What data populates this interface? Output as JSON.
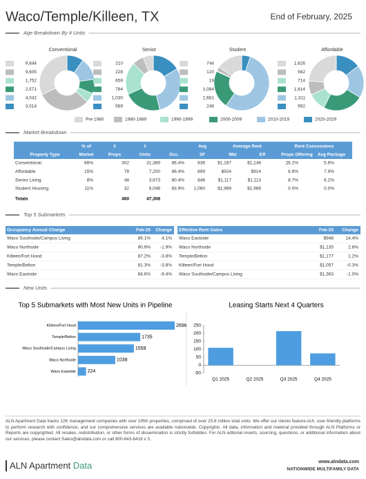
{
  "header": {
    "title": "Waco/Temple/Killeen, TX",
    "date": "End of February, 2025"
  },
  "sections": [
    "Age Breakdown By # Units",
    "Market Breakdown",
    "Top 5 Submarkets",
    "New Units"
  ],
  "age_legend": {
    "categories": [
      "Pre 1980",
      "1980-1989",
      "1990-1999",
      "2000-2009",
      "2010-2019",
      "2020-2029"
    ],
    "colors": [
      "#d9d9d9",
      "#bdbdbd",
      "#a9e3cf",
      "#3a9a78",
      "#9ec6e3",
      "#3a8fc1"
    ]
  },
  "chart_data": [
    {
      "type": "donut",
      "title": "Conventional",
      "values": [
        9844,
        9605,
        1752,
        2571,
        4042,
        3014
      ],
      "value_labels": [
        "9,844",
        "9,605",
        "1,752",
        "2,571",
        "4,042",
        "3,014"
      ]
    },
    {
      "type": "donut",
      "title": "Senior",
      "values": [
        210,
        228,
        659,
        764,
        1030,
        569
      ],
      "value_labels": [
        "210",
        "228",
        "659",
        "764",
        "1,030",
        "569"
      ]
    },
    {
      "type": "donut",
      "title": "Student",
      "values": [
        744,
        120,
        19,
        1084,
        2661,
        246
      ],
      "value_labels": [
        "744",
        "120",
        "19",
        "1,084",
        "2,661",
        "246"
      ]
    },
    {
      "type": "donut",
      "title": "Affordable",
      "values": [
        1626,
        562,
        714,
        1614,
        1311,
        992
      ],
      "value_labels": [
        "1,626",
        "562",
        "714",
        "1,614",
        "1,311",
        "992"
      ]
    },
    {
      "type": "hbar",
      "title": "Top 5 Submarkets with Most New Units in Pipeline",
      "categories": [
        "Killeen/Fort Hood",
        "Temple/Belton",
        "Waco Southside/Campus Living",
        "Waco Northside",
        "Waco Eastside"
      ],
      "values": [
        2696,
        1735,
        1558,
        1038,
        224
      ],
      "color": "#4e9de0"
    },
    {
      "type": "bar",
      "title": "Leasing Starts Next 4 Quarters",
      "categories": [
        "Q1 2025",
        "Q2 2025",
        "Q3 2025",
        "Q4 2025"
      ],
      "values": [
        110,
        0,
        215,
        75
      ],
      "color": "#4e9de0",
      "ylim": [
        -50,
        250
      ],
      "yticks": [
        -50,
        0,
        50,
        100,
        150,
        200,
        250
      ]
    }
  ],
  "market_table": {
    "header_top": [
      null,
      "% of",
      "#",
      "#",
      null,
      "Avg",
      "Average Rent",
      null,
      "Rent Concessions",
      null
    ],
    "header": [
      "Property Type",
      "Market",
      "Props",
      "Units",
      "Occ.",
      "SF",
      "Mkt",
      "Eff",
      "Props Offering",
      "Avg Package"
    ],
    "rows": [
      [
        "Conventional",
        "66%",
        "302",
        "31,389",
        "86.4%",
        "836",
        "$1,167",
        "$1,146",
        "26.2%",
        "5.6%"
      ],
      [
        "Affordable",
        "15%",
        "78",
        "7,200",
        "86.4%",
        "899",
        "$924",
        "$914",
        "6.8%",
        "7.9%"
      ],
      [
        "Senior Living",
        "8%",
        "48",
        "3,673",
        "80.4%",
        "846",
        "$1,117",
        "$1,113",
        "8.7%",
        "6.2%"
      ],
      [
        "Student Housing",
        "11%",
        "32",
        "5,046",
        "83.9%",
        "1,060",
        "$1,989",
        "$1,989",
        "0.0%",
        "0.0%"
      ]
    ],
    "totals": [
      "Totals",
      null,
      "460",
      "47,308",
      null,
      null,
      null,
      null,
      null,
      null
    ]
  },
  "occupancy_table": {
    "header": [
      "Occupancy Annual Change",
      "Feb-25",
      "Change"
    ],
    "rows": [
      [
        "Waco Southside/Campus Living",
        "89.1%",
        "4.1%"
      ],
      [
        "Waco Northside",
        "90.9%",
        "-1.9%"
      ],
      [
        "Killeen/Fort Hood",
        "87.2%",
        "-3.8%"
      ],
      [
        "Temple/Belton",
        "81.3%",
        "-3.8%"
      ],
      [
        "Waco Eastside",
        "84.6%",
        "-9.4%"
      ]
    ]
  },
  "rent_table": {
    "header": [
      "Effective Rent Gains",
      "Feb-25",
      "Change"
    ],
    "rows": [
      [
        "Waco Eastside",
        "$948",
        "14.4%"
      ],
      [
        "Waco Northside",
        "$1,135",
        "2.8%"
      ],
      [
        "Temple/Belton",
        "$1,177",
        "1.2%"
      ],
      [
        "Killeen/Fort Hood",
        "$1,057",
        "-0.3%"
      ],
      [
        "Waco Southside/Campus Living",
        "$1,363",
        "-1.0%"
      ]
    ]
  },
  "footer": {
    "text": "ALN Apartment Data tracks 12K management companies with over 195K properties, comprised of over 25.8 million total units. We offer our clients feature-rich, user-friendly platforms to perform research with confidence, and our comprehensive services are available nationwide. Copyrights: All data, information and material provided through ALN Platforms or Reports are copyrighted. All resales, redistribution, or other forms of dissemination is strictly forbidden. For ALN editorial inserts, sourcing, questions, or additional information about our services, please contact Sales@alndata.com or call 800-643-6416 x 3.",
    "logo_main": "ALN Apartment",
    "logo_accent": "Data",
    "url": "www.alndata.com",
    "tagline": "NATIONWIDE MULTIFAMILY DATA"
  }
}
